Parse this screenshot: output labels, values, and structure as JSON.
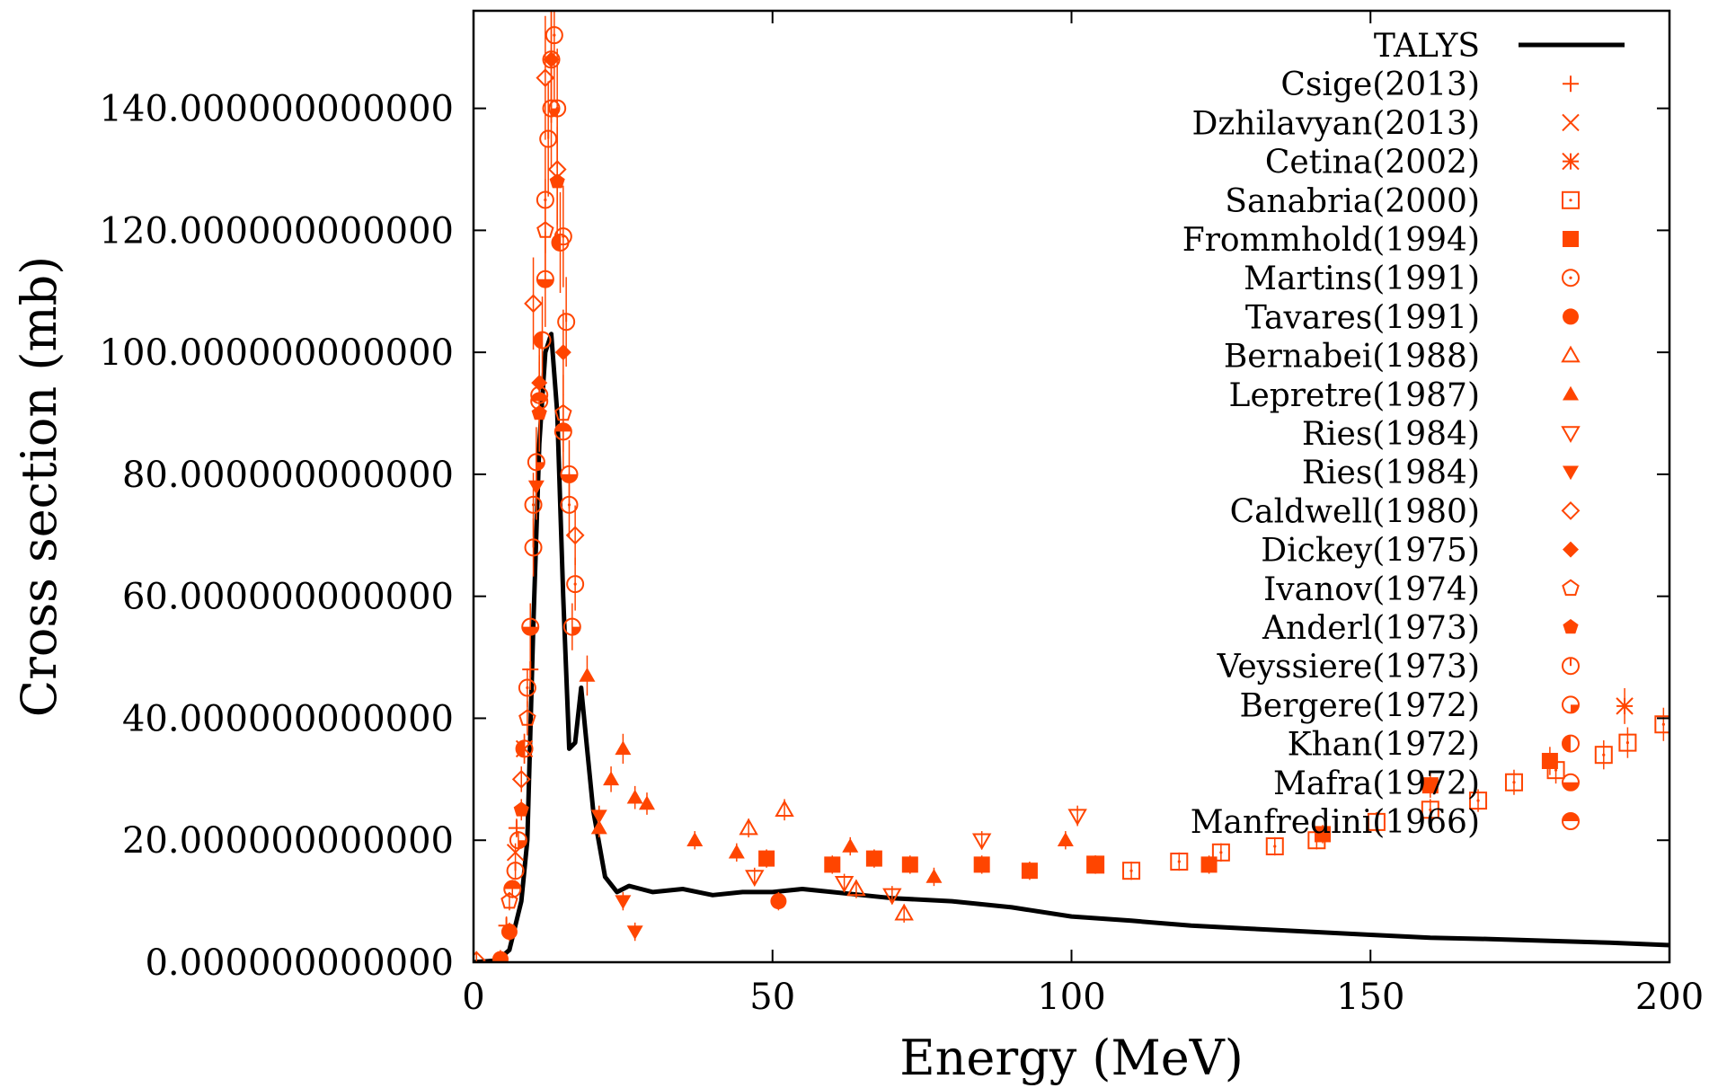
{
  "colors": {
    "data": "#ff4500",
    "model": "#000000",
    "axis": "#000000"
  },
  "chart_data": {
    "type": "scatter",
    "xlabel": "Energy (MeV)",
    "ylabel": "Cross section (mb)",
    "xlim": [
      0,
      200
    ],
    "ylim": [
      0,
      156
    ],
    "xticks": [
      "0",
      "50",
      "100",
      "150",
      "200"
    ],
    "yticks": [
      "0.000000000000",
      "20.000000000000",
      "40.000000000000",
      "60.000000000000",
      "80.000000000000",
      "100.000000000000",
      "120.000000000000",
      "140.000000000000"
    ],
    "legend_position": "top-right",
    "grid": false,
    "series": [
      {
        "name": "TALYS",
        "kind": "line",
        "x": [
          0,
          4,
          6,
          8,
          9,
          10,
          11,
          12,
          13,
          14,
          15,
          16,
          17,
          18,
          19,
          20,
          22,
          24,
          26,
          28,
          30,
          35,
          40,
          45,
          50,
          55,
          60,
          65,
          70,
          80,
          90,
          100,
          110,
          120,
          130,
          140,
          150,
          160,
          170,
          180,
          190,
          200
        ],
        "y": [
          0,
          0.3,
          2,
          10,
          20,
          55,
          85,
          100,
          103,
          90,
          60,
          35,
          36,
          45,
          35,
          25,
          14,
          11.5,
          12.5,
          12,
          11.5,
          12,
          11,
          11.5,
          11.5,
          12,
          11.5,
          11,
          10.5,
          10,
          9,
          7.5,
          6.8,
          6,
          5.5,
          5,
          4.5,
          4,
          3.8,
          3.5,
          3.2,
          2.8
        ]
      },
      {
        "name": "Csige(2013)",
        "marker": "plus",
        "x": [
          5.5,
          7.2,
          9.5
        ],
        "y": [
          6,
          22,
          48
        ]
      },
      {
        "name": "Dzhilavyan(2013)",
        "marker": "cross",
        "x": [
          7.0,
          8.5
        ],
        "y": [
          18,
          35
        ]
      },
      {
        "name": "Cetina(2002)",
        "marker": "asterisk",
        "x": [
          192.5
        ],
        "y": [
          42
        ]
      },
      {
        "name": "Sanabria(2000)",
        "marker": "boxdot",
        "x": [
          104,
          110,
          118,
          125,
          134,
          141,
          151,
          160,
          168,
          174,
          181,
          189,
          193,
          199
        ],
        "y": [
          16,
          15,
          16.5,
          18,
          19,
          20,
          23,
          25,
          26.5,
          29.5,
          31.5,
          34,
          36,
          39
        ]
      },
      {
        "name": "Frommhold(1994)",
        "marker": "square",
        "x": [
          49,
          60,
          67,
          73,
          85,
          93,
          104,
          123,
          142,
          160,
          180
        ],
        "y": [
          17,
          16,
          17,
          16,
          16,
          15,
          16,
          16,
          21,
          29,
          33
        ]
      },
      {
        "name": "Martins(1991)",
        "marker": "circledot",
        "x": [
          9,
          10,
          11,
          12,
          13,
          13.5,
          14,
          15,
          16,
          17
        ],
        "y": [
          45,
          75,
          93,
          125,
          148,
          152,
          140,
          119,
          75,
          62
        ]
      },
      {
        "name": "Tavares(1991)",
        "marker": "circle",
        "x": [
          4.5,
          6,
          51
        ],
        "y": [
          0.5,
          5,
          10
        ]
      },
      {
        "name": "Bernabei(1988)",
        "marker": "triangle",
        "x": [
          46,
          52,
          64,
          72
        ],
        "y": [
          22,
          25,
          12,
          8
        ]
      },
      {
        "name": "Lepretre(1987)",
        "marker": "triangle-filled",
        "x": [
          19,
          21,
          23,
          25,
          27,
          29,
          37,
          44,
          63,
          77,
          99
        ],
        "y": [
          47,
          22,
          30,
          35,
          27,
          26,
          20,
          18,
          19,
          14,
          20
        ]
      },
      {
        "name": "Ries(1984)",
        "marker": "triangle-down",
        "x": [
          47,
          62,
          70,
          85,
          101
        ],
        "y": [
          14,
          13,
          11,
          20,
          24
        ]
      },
      {
        "name": "Ries(1984)",
        "marker": "triangle-down-filled",
        "x": [
          10.5,
          21,
          25,
          27
        ],
        "y": [
          78,
          24,
          10,
          5
        ]
      },
      {
        "name": "Caldwell(1980)",
        "marker": "diamond",
        "x": [
          0.5,
          8,
          10,
          12,
          14,
          17
        ],
        "y": [
          0.3,
          30,
          108,
          145,
          130,
          70
        ]
      },
      {
        "name": "Dickey(1975)",
        "marker": "diamond-filled",
        "x": [
          11,
          13,
          15
        ],
        "y": [
          95,
          148,
          100
        ]
      },
      {
        "name": "Ivanov(1974)",
        "marker": "pentagon",
        "x": [
          6,
          9,
          12,
          15
        ],
        "y": [
          10,
          40,
          120,
          90
        ]
      },
      {
        "name": "Anderl(1973)",
        "marker": "pentagon-filled",
        "x": [
          8,
          11,
          14
        ],
        "y": [
          25,
          90,
          128
        ]
      },
      {
        "name": "Veyssiere(1973)",
        "marker": "circle-split-v",
        "x": [
          7,
          10,
          12.5,
          15.5
        ],
        "y": [
          15,
          68,
          135,
          105
        ]
      },
      {
        "name": "Bergere(1972)",
        "marker": "circle-quarter",
        "x": [
          7.5,
          10.5,
          13,
          16.5
        ],
        "y": [
          20,
          82,
          140,
          55
        ]
      },
      {
        "name": "Khan(1972)",
        "marker": "circle-half-left",
        "x": [
          8.5,
          11.5,
          14.5
        ],
        "y": [
          35,
          102,
          118
        ]
      },
      {
        "name": "Mafra(1972)",
        "marker": "circle-half-bottom",
        "x": [
          9.5,
          12,
          16
        ],
        "y": [
          55,
          112,
          80
        ]
      },
      {
        "name": "Manfredini(1966)",
        "marker": "circle-half-top",
        "x": [
          6.5,
          11,
          15
        ],
        "y": [
          12,
          92,
          87
        ]
      }
    ]
  }
}
